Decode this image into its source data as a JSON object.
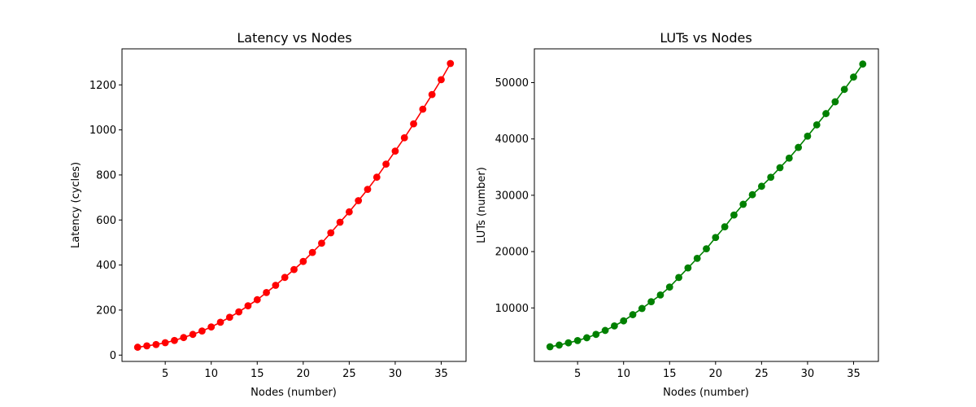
{
  "chart_data": [
    {
      "type": "line",
      "title": "Latency vs Nodes",
      "xlabel": "Nodes (number)",
      "ylabel": "Latency (cycles)",
      "xlim": [
        0.3,
        37.7
      ],
      "ylim": [
        -28,
        1360
      ],
      "xticks": [
        5,
        10,
        15,
        20,
        25,
        30,
        35
      ],
      "yticks": [
        0,
        200,
        400,
        600,
        800,
        1000,
        1200
      ],
      "grid": false,
      "series": [
        {
          "color": "#ff0000",
          "marker": "circle",
          "x": [
            2,
            3,
            4,
            5,
            6,
            7,
            8,
            9,
            10,
            11,
            12,
            13,
            14,
            15,
            16,
            17,
            18,
            19,
            20,
            21,
            22,
            23,
            24,
            25,
            26,
            27,
            28,
            29,
            30,
            31,
            32,
            33,
            34,
            35,
            36
          ],
          "y": [
            35,
            41,
            47,
            55,
            65,
            78,
            92,
            107,
            125,
            146,
            168,
            192,
            219,
            246,
            278,
            310,
            345,
            380,
            416,
            456,
            497,
            543,
            590,
            636,
            686,
            736,
            790,
            848,
            906,
            965,
            1027,
            1092,
            1157,
            1223,
            1295
          ]
        }
      ]
    },
    {
      "type": "line",
      "title": "LUTs vs Nodes",
      "xlabel": "Nodes (number)",
      "ylabel": "LUTs (number)",
      "xlim": [
        0.3,
        37.7
      ],
      "ylim": [
        500,
        56000
      ],
      "xticks": [
        5,
        10,
        15,
        20,
        25,
        30,
        35
      ],
      "yticks": [
        10000,
        20000,
        30000,
        40000,
        50000
      ],
      "grid": false,
      "series": [
        {
          "color": "#008000",
          "marker": "circle",
          "x": [
            2,
            3,
            4,
            5,
            6,
            7,
            8,
            9,
            10,
            11,
            12,
            13,
            14,
            15,
            16,
            17,
            18,
            19,
            20,
            21,
            22,
            23,
            24,
            25,
            26,
            27,
            28,
            29,
            30,
            31,
            32,
            33,
            34,
            35,
            36
          ],
          "y": [
            3100,
            3400,
            3800,
            4200,
            4700,
            5300,
            6000,
            6800,
            7700,
            8800,
            9900,
            11100,
            12300,
            13700,
            15400,
            17100,
            18800,
            20500,
            22500,
            24400,
            26500,
            28400,
            30100,
            31600,
            33200,
            34900,
            36600,
            38500,
            40500,
            42500,
            44500,
            46600,
            48800,
            51000,
            53300
          ]
        }
      ]
    }
  ]
}
